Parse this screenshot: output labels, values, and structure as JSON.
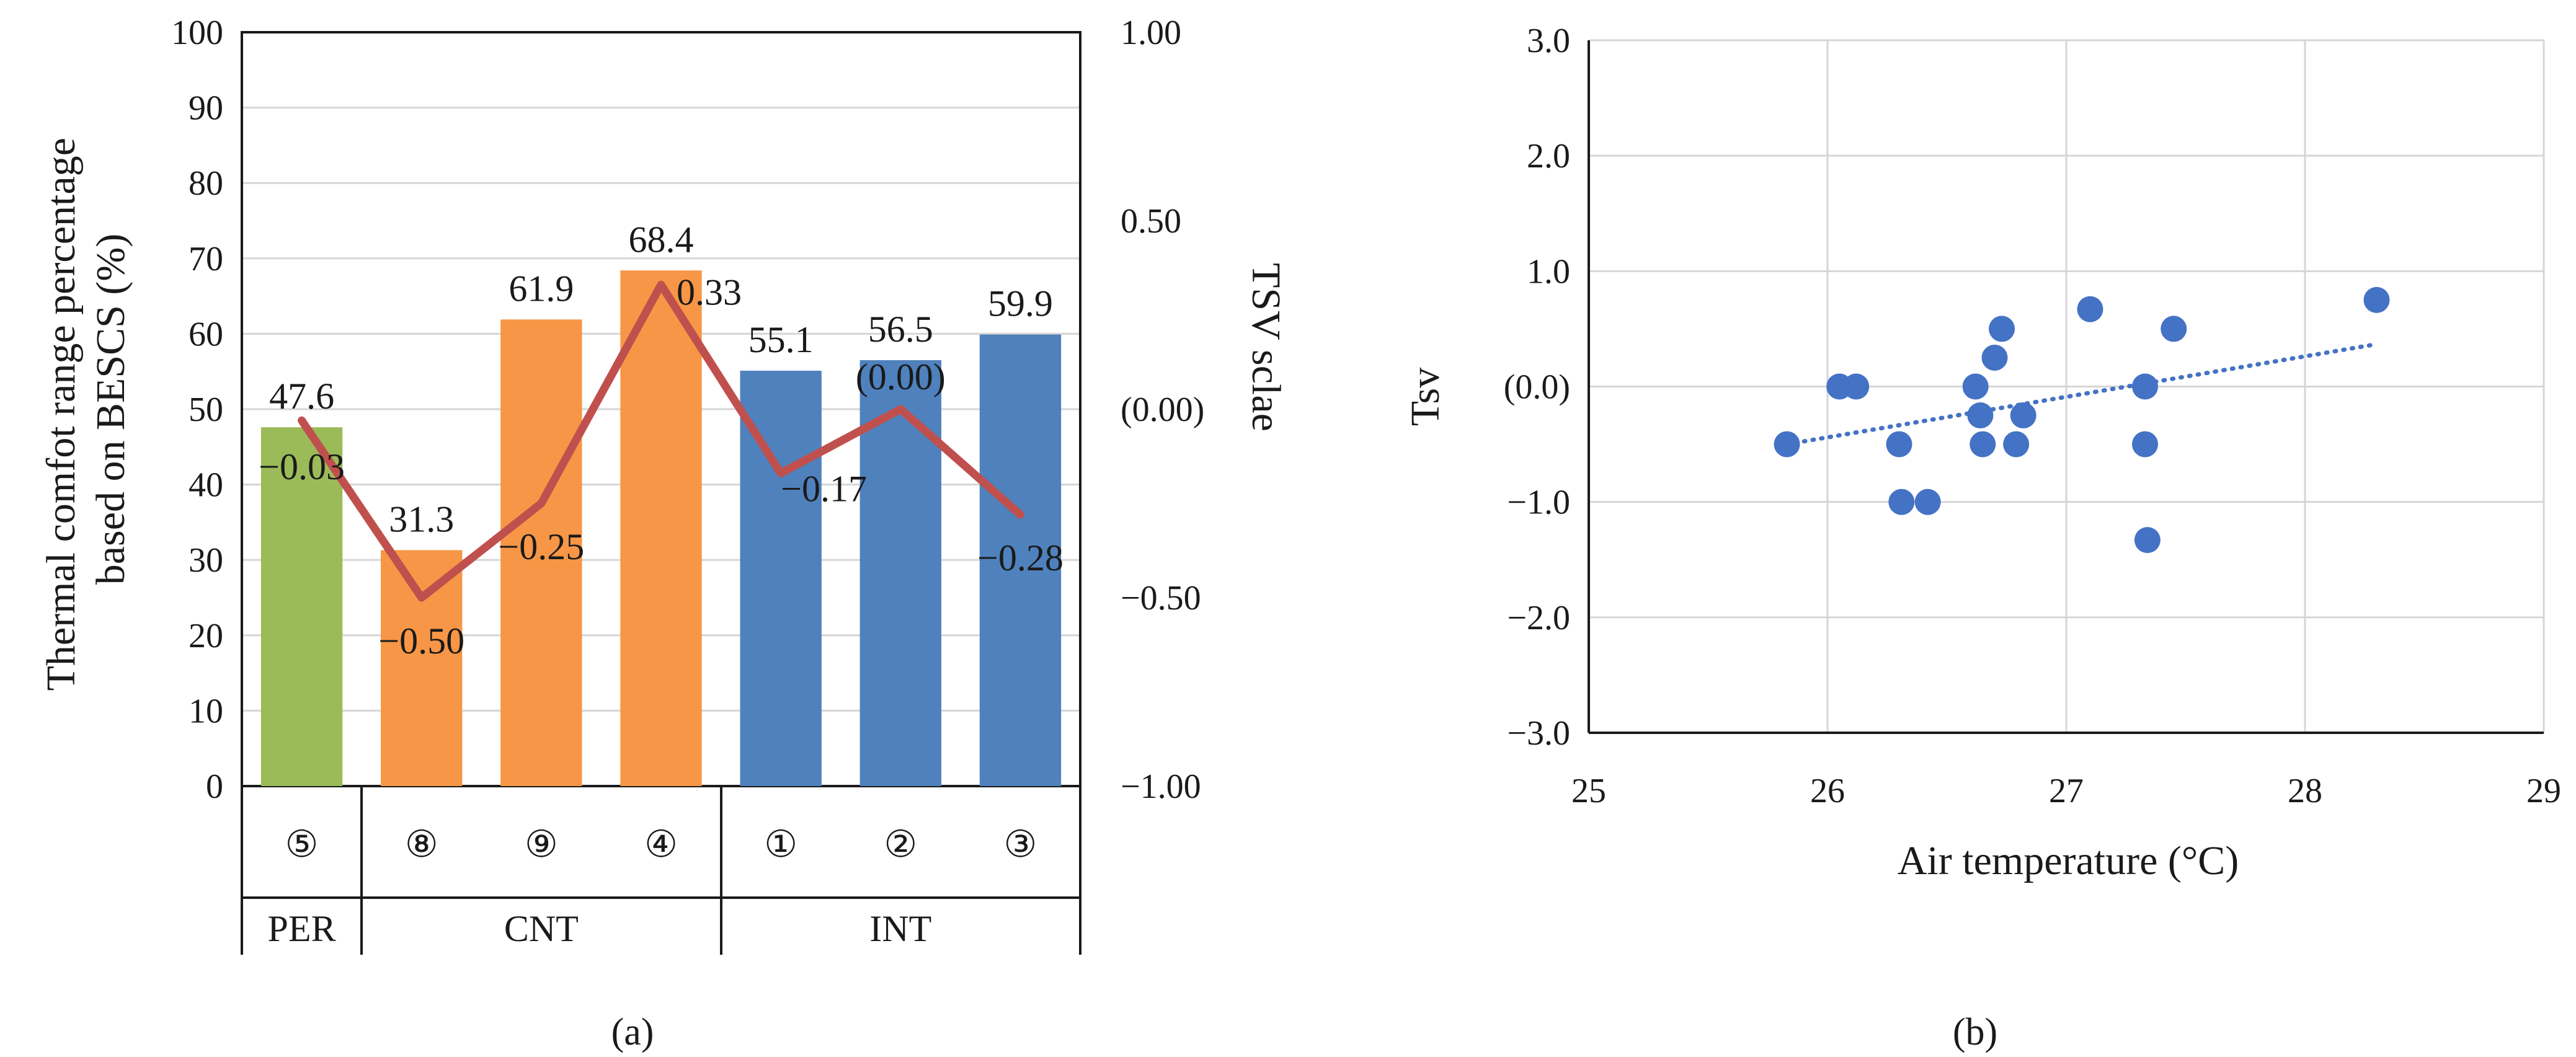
{
  "chart_data": [
    {
      "panel": "(a)",
      "type": "bar",
      "subtitle": "(a)",
      "ylabel_lines": [
        "Thermal comfot range percentage",
        "based on BESCS (%)"
      ],
      "y2label": "TSV sclae",
      "ylim": [
        0,
        100
      ],
      "yticks": [
        "0",
        "10",
        "20",
        "30",
        "40",
        "50",
        "60",
        "70",
        "80",
        "90",
        "100"
      ],
      "y2lim": [
        -1.0,
        1.0
      ],
      "y2ticks": [
        "−1.00",
        "−0.50",
        "(0.00)",
        "0.50",
        "1.00"
      ],
      "categories": [
        "⑤",
        "⑧",
        "⑨",
        "④",
        "①",
        "②",
        "③"
      ],
      "groups": [
        {
          "label": "PER",
          "span": 1
        },
        {
          "label": "CNT",
          "span": 3
        },
        {
          "label": "INT",
          "span": 3
        }
      ],
      "bar_values": [
        47.6,
        31.3,
        61.9,
        68.4,
        55.1,
        56.5,
        59.9
      ],
      "bar_labels": [
        "47.6",
        "31.3",
        "61.9",
        "68.4",
        "55.1",
        "56.5",
        "59.9"
      ],
      "bar_colors": [
        "#9bbb59",
        "#f79646",
        "#f79646",
        "#f79646",
        "#4f81bd",
        "#4f81bd",
        "#4f81bd"
      ],
      "line_values": [
        -0.03,
        -0.5,
        -0.25,
        0.33,
        -0.17,
        0.0,
        -0.28
      ],
      "line_labels": [
        "−0.03",
        "−0.50",
        "−0.25",
        "0.33",
        "−0.17",
        "(0.00)",
        "−0.28"
      ],
      "line_color": "#c0504d"
    },
    {
      "panel": "(b)",
      "type": "scatter",
      "subtitle": "(b)",
      "xlabel": "Air temperature (°C)",
      "ylabel": "Tsv",
      "xlim": [
        25,
        29
      ],
      "xticks": [
        "25",
        "26",
        "27",
        "28",
        "29"
      ],
      "ylim": [
        -3.0,
        3.0
      ],
      "yticks": [
        "−3.0",
        "−2.0",
        "−1.0",
        "(0.0)",
        "1.0",
        "2.0",
        "3.0"
      ],
      "points": [
        [
          25.83,
          -0.5
        ],
        [
          26.05,
          0.0
        ],
        [
          26.12,
          0.0
        ],
        [
          26.3,
          -0.5
        ],
        [
          26.31,
          -1.0
        ],
        [
          26.42,
          -1.0
        ],
        [
          26.62,
          0.0
        ],
        [
          26.64,
          -0.25
        ],
        [
          26.65,
          -0.5
        ],
        [
          26.7,
          0.25
        ],
        [
          26.73,
          0.5
        ],
        [
          26.79,
          -0.5
        ],
        [
          26.82,
          -0.25
        ],
        [
          27.1,
          0.67
        ],
        [
          27.33,
          -0.5
        ],
        [
          27.33,
          0.0
        ],
        [
          27.34,
          -1.33
        ],
        [
          27.45,
          0.5
        ],
        [
          28.3,
          0.75
        ]
      ],
      "trendline": {
        "x": [
          25.83,
          28.28
        ],
        "y": [
          -0.5,
          0.36
        ],
        "style": "dotted"
      },
      "point_color": "#4472c4"
    }
  ]
}
